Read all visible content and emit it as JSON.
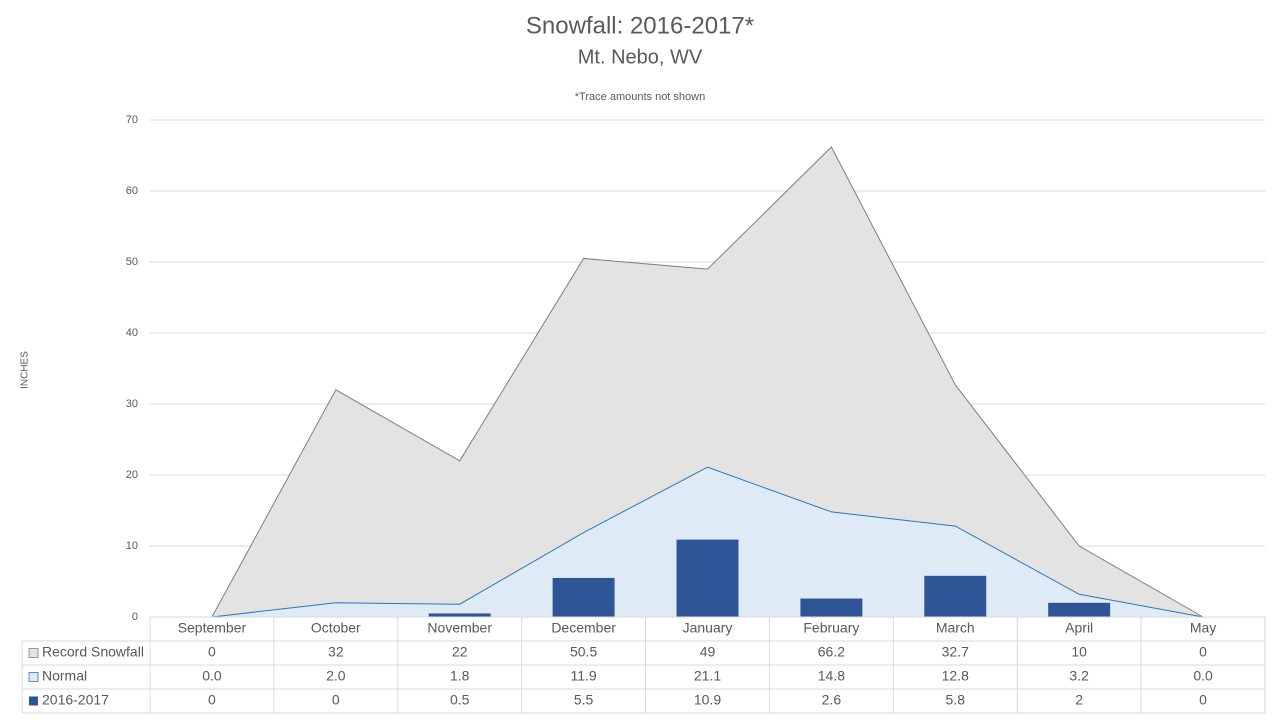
{
  "chart_data": {
    "type": "area-bar-table",
    "title": "Snowfall: 2016-2017*",
    "subtitle": "Mt. Nebo, WV",
    "note": "*Trace amounts not shown",
    "y_label": "INCHES",
    "categories": [
      "September",
      "October",
      "November",
      "December",
      "January",
      "February",
      "March",
      "April",
      "May"
    ],
    "series": [
      {
        "name": "Record Snowfall",
        "kind": "area",
        "color": "#e3e3e3",
        "line_color": "#7f7f7f",
        "values": [
          0,
          32,
          22,
          50.5,
          49,
          66.2,
          32.7,
          10,
          0
        ]
      },
      {
        "name": "Normal",
        "kind": "area",
        "color": "#deebf7",
        "line_color": "#2e75b6",
        "values": [
          0,
          2,
          1.8,
          11.9,
          21.1,
          14.8,
          12.8,
          3.2,
          0
        ],
        "value_labels": [
          "0.0",
          "2.0",
          "1.8",
          "11.9",
          "21.1",
          "14.8",
          "12.8",
          "3.2",
          "0.0"
        ]
      },
      {
        "name": "2016-2017",
        "kind": "bar",
        "color": "#2f5597",
        "values": [
          0,
          0,
          0.5,
          5.5,
          10.9,
          2.6,
          5.8,
          2,
          0
        ]
      }
    ],
    "ylim": [
      0,
      70
    ],
    "yticks": [
      0,
      10,
      20,
      30,
      40,
      50,
      60,
      70
    ],
    "grid": true
  }
}
